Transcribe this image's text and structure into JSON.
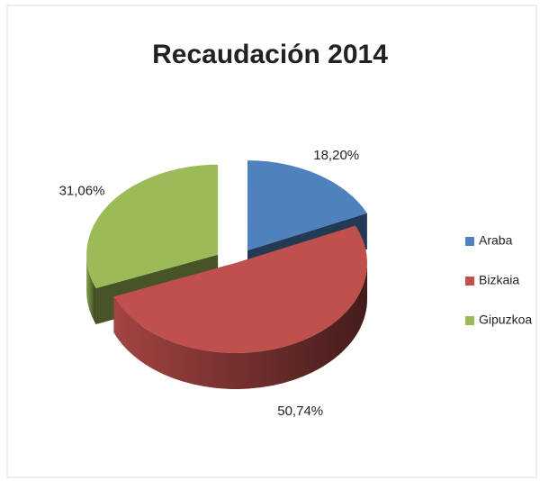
{
  "chart_data": {
    "type": "pie",
    "title": "Recaudación 2014",
    "categories": [
      "Araba",
      "Bizkaia",
      "Gipuzkoa"
    ],
    "values": [
      18.2,
      50.74,
      31.06
    ],
    "value_labels": [
      "18,20%",
      "50,74%",
      "31,06%"
    ],
    "colors": [
      "#4f81bd",
      "#c0504d",
      "#9bbb59"
    ],
    "legend": "right"
  }
}
